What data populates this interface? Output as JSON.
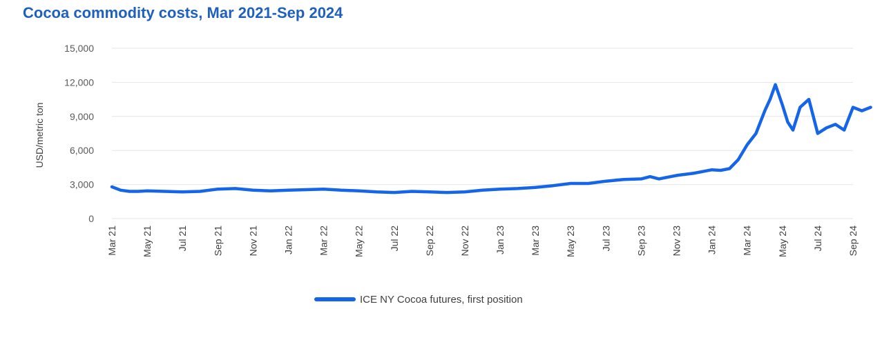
{
  "chart_data": {
    "type": "line",
    "title": "Cocoa commodity costs, Mar 2021-Sep 2024",
    "xlabel": "",
    "ylabel": "USD/metric ton",
    "ylim": [
      0,
      15000
    ],
    "yticks": [
      0,
      3000,
      6000,
      9000,
      12000,
      15000
    ],
    "ytick_labels": [
      "0",
      "3,000",
      "6,000",
      "9,000",
      "12,000",
      "15,000"
    ],
    "xtick_labels": [
      "Mar 21",
      "May 21",
      "Jul 21",
      "Sep 21",
      "Nov 21",
      "Jan 22",
      "Mar 22",
      "May 22",
      "Jul 22",
      "Sep 22",
      "Nov 22",
      "Jan 23",
      "Mar 23",
      "May 23",
      "Jul 23",
      "Sep 23",
      "Nov 23",
      "Jan 24",
      "Mar 24",
      "May 24",
      "Jul 24",
      "Sep 24"
    ],
    "xtick_months": [
      0,
      2,
      4,
      6,
      8,
      10,
      12,
      14,
      16,
      18,
      20,
      22,
      24,
      26,
      28,
      30,
      32,
      34,
      36,
      38,
      40,
      42
    ],
    "grid": "horizontal",
    "legend_position": "bottom-center",
    "colors": {
      "series": "#1565e8",
      "title": "#1f5fbf",
      "grid": "#e6e6e6"
    },
    "series": [
      {
        "name": "ICE NY Cocoa futures, first position",
        "x_months": [
          0,
          0.5,
          1,
          1.5,
          2,
          3,
          4,
          5,
          6,
          7,
          8,
          9,
          10,
          11,
          12,
          13,
          14,
          15,
          16,
          17,
          18,
          19,
          20,
          21,
          22,
          23,
          24,
          25,
          26,
          27,
          28,
          29,
          30,
          30.5,
          31,
          32,
          33,
          34,
          34.5,
          35,
          35.5,
          36,
          36.5,
          37,
          37.3,
          37.6,
          38,
          38.3,
          38.6,
          39,
          39.5,
          40,
          40.5,
          41,
          41.5,
          42,
          42.5,
          43
        ],
        "values": [
          2800,
          2500,
          2400,
          2400,
          2450,
          2400,
          2350,
          2400,
          2600,
          2650,
          2500,
          2450,
          2500,
          2550,
          2600,
          2500,
          2450,
          2350,
          2300,
          2400,
          2350,
          2300,
          2350,
          2500,
          2600,
          2650,
          2750,
          2900,
          3100,
          3100,
          3300,
          3450,
          3500,
          3700,
          3500,
          3800,
          4000,
          4300,
          4250,
          4400,
          5200,
          6500,
          7500,
          9500,
          10500,
          11800,
          10000,
          8500,
          7800,
          9800,
          10500,
          7500,
          8000,
          8300,
          7800,
          9800,
          9500,
          9800
        ]
      }
    ]
  }
}
